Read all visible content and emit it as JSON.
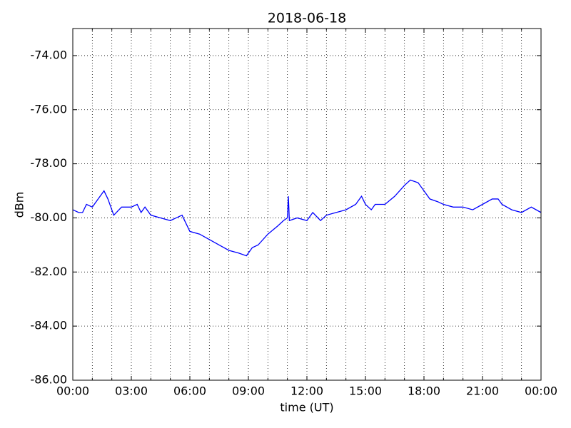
{
  "chart_data": {
    "type": "line",
    "title": "2018-06-18",
    "xlabel": "time (UT)",
    "ylabel": "dBm",
    "x": [
      0,
      0.3,
      0.5,
      0.7,
      1.0,
      1.3,
      1.6,
      1.8,
      2.1,
      2.5,
      3.0,
      3.3,
      3.5,
      3.7,
      4.0,
      4.5,
      5.0,
      5.3,
      5.6,
      5.8,
      6.0,
      6.5,
      7.0,
      7.5,
      8.0,
      8.5,
      8.9,
      9.2,
      9.5,
      10.0,
      10.5,
      10.8,
      11.0,
      11.05,
      11.1,
      11.5,
      12.0,
      12.3,
      12.7,
      13.0,
      13.5,
      14.0,
      14.5,
      14.8,
      15.0,
      15.3,
      15.5,
      16.0,
      16.5,
      17.0,
      17.3,
      17.7,
      18.0,
      18.3,
      18.7,
      19.0,
      19.5,
      20.0,
      20.5,
      21.0,
      21.5,
      21.8,
      22.0,
      22.5,
      23.0,
      23.5,
      24.0
    ],
    "series": [
      {
        "name": "dBm",
        "color": "#0000ff",
        "values": [
          -79.7,
          -79.8,
          -79.8,
          -79.5,
          -79.6,
          -79.3,
          -79.0,
          -79.3,
          -79.9,
          -79.6,
          -79.6,
          -79.5,
          -79.8,
          -79.6,
          -79.9,
          -80.0,
          -80.1,
          -80.0,
          -79.9,
          -80.2,
          -80.5,
          -80.6,
          -80.8,
          -81.0,
          -81.2,
          -81.3,
          -81.4,
          -81.1,
          -81.0,
          -80.6,
          -80.3,
          -80.1,
          -80.0,
          -79.2,
          -80.1,
          -80.0,
          -80.1,
          -79.8,
          -80.1,
          -79.9,
          -79.8,
          -79.7,
          -79.5,
          -79.2,
          -79.5,
          -79.7,
          -79.5,
          -79.5,
          -79.2,
          -78.8,
          -78.6,
          -78.7,
          -79.0,
          -79.3,
          -79.4,
          -79.5,
          -79.6,
          -79.6,
          -79.7,
          -79.5,
          -79.3,
          -79.3,
          -79.5,
          -79.7,
          -79.8,
          -79.6,
          -79.8
        ]
      }
    ],
    "xlim": [
      0,
      24
    ],
    "xticks": [
      {
        "value": 0,
        "label": "00:00"
      },
      {
        "value": 3,
        "label": "03:00"
      },
      {
        "value": 6,
        "label": "06:00"
      },
      {
        "value": 9,
        "label": "09:00"
      },
      {
        "value": 12,
        "label": "12:00"
      },
      {
        "value": 15,
        "label": "15:00"
      },
      {
        "value": 18,
        "label": "18:00"
      },
      {
        "value": 21,
        "label": "21:00"
      },
      {
        "value": 24,
        "label": "00:00"
      }
    ],
    "xminorticks": [
      1,
      2,
      4,
      5,
      7,
      8,
      10,
      11,
      13,
      14,
      16,
      17,
      19,
      20,
      22,
      23
    ],
    "ylim": [
      -86,
      -73
    ],
    "yticks": [
      {
        "value": -86,
        "label": "-86.00"
      },
      {
        "value": -84,
        "label": "-84.00"
      },
      {
        "value": -82,
        "label": "-82.00"
      },
      {
        "value": -80,
        "label": "-80.00"
      },
      {
        "value": -78,
        "label": "-78.00"
      },
      {
        "value": -76,
        "label": "-76.00"
      },
      {
        "value": -74,
        "label": "-74.00"
      }
    ],
    "grid": true
  }
}
